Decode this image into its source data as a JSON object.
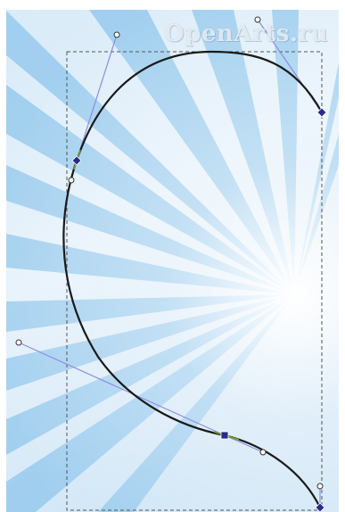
{
  "watermark": {
    "text": "OpenArts.ru"
  },
  "colors": {
    "background_light": "#e9f4fc",
    "background_mid": "#cfe6f6",
    "ray": "#8fc6ec",
    "curve": "#1a1a1a",
    "handle_line": "#8c8fe0",
    "node_fill": "#2b2a8c",
    "bbox_dash": "#555555",
    "segment_highlight": "#7a9a3a"
  },
  "icons": {
    "node": "diamond-node-icon",
    "handle": "circle-handle-icon",
    "smooth_node": "square-node-icon"
  }
}
